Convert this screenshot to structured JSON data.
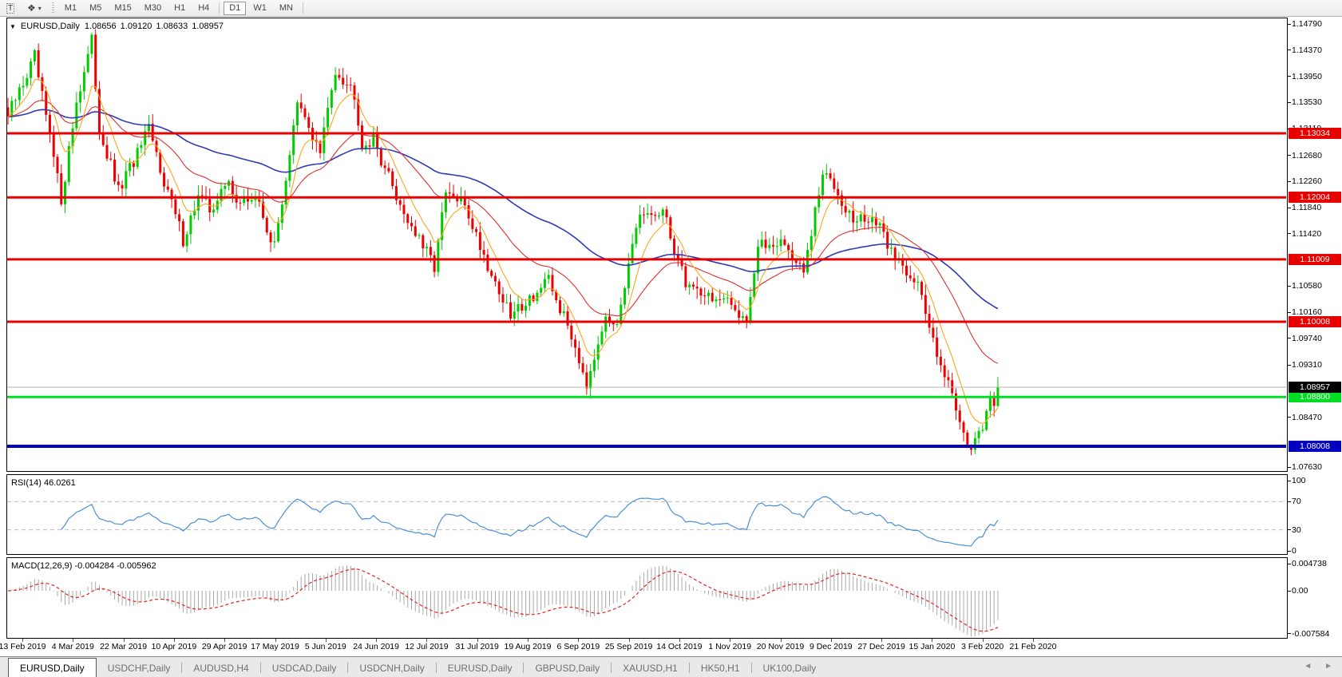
{
  "toolbar": {
    "text_tool_label": "T",
    "indicator_tool_icon": "❖",
    "dropdown_caret": "▼",
    "timeframes": [
      "M1",
      "M5",
      "M15",
      "M30",
      "H1",
      "H4",
      "D1",
      "W1",
      "MN"
    ],
    "active_timeframe": "D1"
  },
  "header": {
    "dropdown_glyph": "▼",
    "symbol": "EURUSD,Daily",
    "open": "1.08656",
    "high": "1.09120",
    "low": "1.08633",
    "close": "1.08957"
  },
  "price_axis": {
    "ticks": [
      "1.14790",
      "1.14370",
      "1.13950",
      "1.13530",
      "1.13110",
      "1.12680",
      "1.12260",
      "1.11840",
      "1.11420",
      "1.10580",
      "1.10160",
      "1.09740",
      "1.09310",
      "1.08470",
      "1.07630"
    ]
  },
  "levels": {
    "hlines": [
      {
        "label": "1.13034",
        "price": 1.13034,
        "color": "#e60000",
        "thickness": 3
      },
      {
        "label": "1.12004",
        "price": 1.12004,
        "color": "#e60000",
        "thickness": 3
      },
      {
        "label": "1.11009",
        "price": 1.11009,
        "color": "#e60000",
        "thickness": 3
      },
      {
        "label": "1.10008",
        "price": 1.10008,
        "color": "#e60000",
        "thickness": 3
      },
      {
        "label": "1.08800",
        "price": 1.088,
        "color": "#00dd22",
        "thickness": 3
      },
      {
        "label": "1.08008",
        "price": 1.08008,
        "color": "#0000c0",
        "thickness": 4
      }
    ],
    "current_price": {
      "label": "1.08957",
      "price": 1.08957,
      "line_color": "#b0b0b0",
      "box_color": "#000000"
    }
  },
  "rsi": {
    "name": "RSI(14)",
    "value": "46.0261",
    "scale": [
      "100",
      "70",
      "30",
      "0"
    ],
    "level_high": 70,
    "level_low": 30,
    "line_color": "#4a90d8"
  },
  "macd": {
    "name": "MACD(12,26,9)",
    "value_macd": "-0.004284",
    "value_signal": "-0.005962",
    "scale_top": "0.004738",
    "scale_zero": "0.00",
    "scale_bottom": "-0.007584",
    "hist_color": "#a8a8a8",
    "signal_color": "#e62222"
  },
  "dates": [
    "13 Feb 2019",
    "4 Mar 2019",
    "22 Mar 2019",
    "10 Apr 2019",
    "29 Apr 2019",
    "17 May 2019",
    "5 Jun 2019",
    "24 Jun 2019",
    "12 Jul 2019",
    "31 Jul 2019",
    "19 Aug 2019",
    "6 Sep 2019",
    "25 Sep 2019",
    "14 Oct 2019",
    "1 Nov 2019",
    "20 Nov 2019",
    "9 Dec 2019",
    "27 Dec 2019",
    "15 Jan 2020",
    "3 Feb 2020",
    "21 Feb 2020"
  ],
  "tabs": {
    "items": [
      "EURUSD,Daily",
      "USDCHF,Daily",
      "AUDUSD,H4",
      "USDCAD,Daily",
      "USDCNH,Daily",
      "EURUSD,Daily",
      "GBPUSD,Daily",
      "XAUUSD,H1",
      "HK50,H1",
      "UK100,Daily"
    ],
    "active_index": 0,
    "scroll_left": "◄",
    "scroll_right": "►"
  },
  "colors": {
    "bull": "#00cc00",
    "bear": "#ee0000",
    "ma_fast": "#ffa520",
    "ma_mid": "#dd3030",
    "ma_slow": "#2e3cb4"
  },
  "chart_data": {
    "type": "candlestick",
    "symbol": "EURUSD",
    "timeframe": "Daily",
    "bars_visible": 261,
    "y_axis_range": [
      1.0763,
      1.1479
    ],
    "x_axis_dates": [
      "13 Feb 2019",
      "4 Mar 2019",
      "22 Mar 2019",
      "10 Apr 2019",
      "29 Apr 2019",
      "17 May 2019",
      "5 Jun 2019",
      "24 Jun 2019",
      "12 Jul 2019",
      "31 Jul 2019",
      "19 Aug 2019",
      "6 Sep 2019",
      "25 Sep 2019",
      "14 Oct 2019",
      "1 Nov 2019",
      "20 Nov 2019",
      "9 Dec 2019",
      "27 Dec 2019",
      "15 Jan 2020",
      "3 Feb 2020",
      "21 Feb 2020"
    ],
    "last_bar": {
      "open": 1.08656,
      "high": 1.0912,
      "low": 1.08633,
      "close": 1.08957
    },
    "horizontal_levels": [
      1.13034,
      1.12004,
      1.11009,
      1.10008,
      1.088,
      1.08008
    ],
    "price_path": [
      [
        0,
        1.133
      ],
      [
        7,
        1.1425
      ],
      [
        14,
        1.1197
      ],
      [
        18,
        1.1355
      ],
      [
        22,
        1.145
      ],
      [
        24,
        1.131
      ],
      [
        29,
        1.1209
      ],
      [
        37,
        1.1307
      ],
      [
        46,
        1.1133
      ],
      [
        50,
        1.1202
      ],
      [
        53,
        1.1181
      ],
      [
        58,
        1.1224
      ],
      [
        61,
        1.1189
      ],
      [
        65,
        1.1203
      ],
      [
        70,
        1.1119
      ],
      [
        76,
        1.1348
      ],
      [
        79,
        1.1314
      ],
      [
        82,
        1.1272
      ],
      [
        86,
        1.1408
      ],
      [
        91,
        1.1369
      ],
      [
        93,
        1.1286
      ],
      [
        96,
        1.1293
      ],
      [
        103,
        1.1189
      ],
      [
        109,
        1.1119
      ],
      [
        112,
        1.1092
      ],
      [
        115,
        1.1205
      ],
      [
        120,
        1.1189
      ],
      [
        126,
        1.1092
      ],
      [
        132,
        1.1008
      ],
      [
        135,
        1.1029
      ],
      [
        142,
        1.1064
      ],
      [
        148,
        1.098
      ],
      [
        152,
        1.0905
      ],
      [
        156,
        1.0994
      ],
      [
        160,
        1.1008
      ],
      [
        166,
        1.1168
      ],
      [
        172,
        1.1175
      ],
      [
        178,
        1.1064
      ],
      [
        184,
        1.1043
      ],
      [
        191,
        1.1022
      ],
      [
        194,
        1.1008
      ],
      [
        197,
        1.1119
      ],
      [
        203,
        1.1133
      ],
      [
        209,
        1.1078
      ],
      [
        214,
        1.1237
      ],
      [
        217,
        1.1224
      ],
      [
        222,
        1.1161
      ],
      [
        227,
        1.1168
      ],
      [
        233,
        1.1106
      ],
      [
        239,
        1.1064
      ],
      [
        241,
        1.1008
      ],
      [
        245,
        1.0939
      ],
      [
        248,
        1.0883
      ],
      [
        251,
        1.0828
      ],
      [
        253,
        1.0793
      ],
      [
        255,
        1.0814
      ],
      [
        257,
        1.0855
      ],
      [
        260,
        1.08957
      ]
    ],
    "indicators": [
      {
        "name": "RSI",
        "period": 14,
        "last_value": 46.0261,
        "overbought": 70,
        "oversold": 30,
        "range": [
          0,
          100
        ]
      },
      {
        "name": "MACD",
        "fast": 12,
        "slow": 26,
        "signal": 9,
        "last_macd": -0.004284,
        "last_signal": -0.005962,
        "axis": [
          0.004738,
          0.0,
          -0.007584
        ]
      }
    ],
    "overlays": [
      "fast MA (orange)",
      "medium MA (red)",
      "slow MA (blue)"
    ]
  }
}
